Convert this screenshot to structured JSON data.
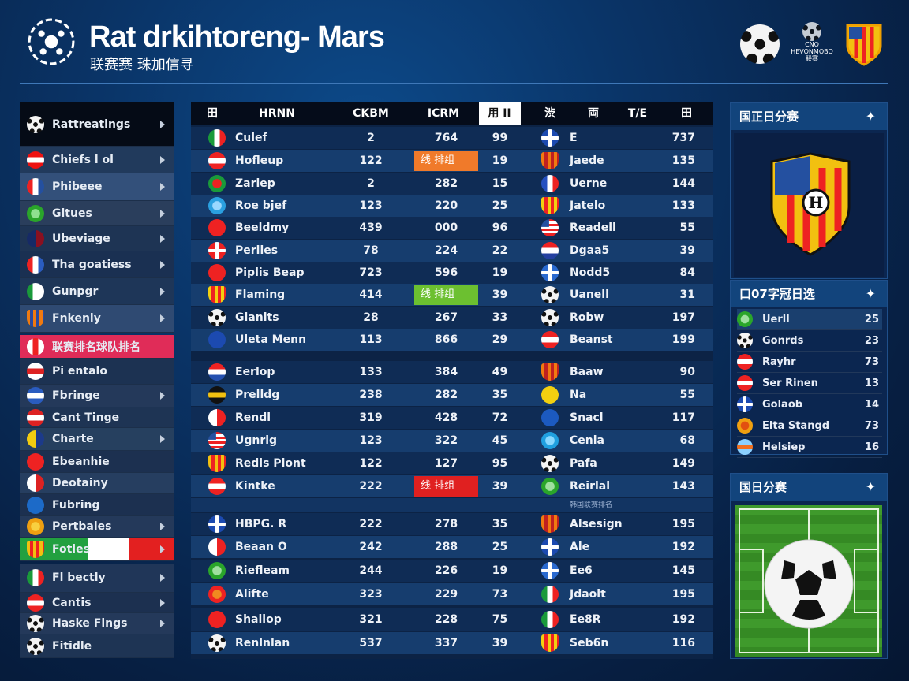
{
  "header": {
    "title": "Rat drkihtoreng- Mars",
    "subtitle": "联赛赛 珠加信寻",
    "right_logo_text": "CNO HEVONMOBO 联赛"
  },
  "sidebar": {
    "items": [
      {
        "label": "Rattreatings",
        "icon": "ball",
        "chev": true,
        "bg": "#050b16"
      },
      {
        "label": "Chiefs l ol",
        "icon": "h3:#e11:#fff:#e11",
        "chev": true,
        "bg": "#213a5c"
      },
      {
        "label": "Phibeee",
        "icon": "v3:#e22:#fff:#2450a0",
        "chev": true,
        "bg": "#33507a"
      },
      {
        "label": "Gitues",
        "icon": "ring:#2aa52a:#8fe08f",
        "chev": true,
        "bg": "#2a3e5c"
      },
      {
        "label": "Ubeviage",
        "icon": "v2:#162a66:#8a1020",
        "chev": true,
        "bg": "#1e3454"
      },
      {
        "label": "Tha goatiess",
        "icon": "v3:#e22:#fff:#2a5cc0",
        "chev": true,
        "bg": "#1a3052"
      },
      {
        "label": "Gunpgr",
        "icon": "v3:#1a9a3a:#fff:#fff",
        "chev": true,
        "bg": "#1e3658"
      },
      {
        "label": "Fnkenly",
        "icon": "shield:#f07a10:#2a4aa0",
        "chev": true,
        "bg": "#2f4a72"
      },
      {
        "label": "联赛排名球队排名",
        "icon": "v3:#fff:#e22:#fff",
        "chev": false,
        "bg": "#e02c58"
      },
      {
        "label": "Pi entalo",
        "icon": "h3:#fff:#d22:#fff",
        "chev": false,
        "bg": "#1c3252"
      },
      {
        "label": "Fbringe",
        "icon": "h3:#2a5cc0:#fff:#2a5cc0",
        "chev": true,
        "bg": "#24395a"
      },
      {
        "label": "Cant Tinge",
        "icon": "h3:#d22:#fff:#d22",
        "chev": false,
        "bg": "#1e3454"
      },
      {
        "label": "Charte",
        "icon": "v2:#f2cc10:#1c3a8a",
        "chev": true,
        "bg": "#26405f"
      },
      {
        "label": "Ebeanhie",
        "icon": "solid:#e22",
        "chev": false,
        "bg": "#1c3050"
      },
      {
        "label": "Deotainy",
        "icon": "v2:#fff:#d22",
        "chev": false,
        "bg": "#263e60"
      },
      {
        "label": "Fubring",
        "icon": "solid:#1c6ac8",
        "chev": false,
        "bg": "#1c3050"
      },
      {
        "label": "Pertbales",
        "icon": "ring:#f0a010:#f8d040",
        "chev": true,
        "bg": "#24395a"
      },
      {
        "label": "Fotles",
        "icon": "shield:#f2c010:#e22",
        "chev": true,
        "bg": "linear-gradient(90deg,#22a040 0 44%,#fff 44% 71%,#e32020 71%)"
      },
      {
        "label": "Fl bectly",
        "icon": "v3:#1a9a3a:#fff:#e22",
        "chev": true,
        "bg": "#203658"
      },
      {
        "label": "Cantis",
        "icon": "h3:#e22:#fff:#e22",
        "chev": true,
        "bg": "#1c3050"
      },
      {
        "label": "Haske Fings",
        "icon": "ball",
        "chev": true,
        "bg": "#24395a"
      },
      {
        "label": "Fitidle",
        "icon": "ball",
        "chev": false,
        "bg": "#1e3454"
      }
    ]
  },
  "table": {
    "headers": [
      "田",
      "HRNN",
      "CKBM",
      "ICRM",
      "用 II",
      "渋",
      "両",
      "T/E",
      "田"
    ],
    "rows": [
      {
        "i1": "v3:#1a9a3a:#fff:#e22",
        "n1": "Culef",
        "a": "2",
        "b": "764",
        "c": "99",
        "i2": "cross:#1c4ab0:#fff",
        "n2": "E",
        "d": "737"
      },
      {
        "i1": "h3:#e22:#fff:#e22",
        "n1": "Hofleup",
        "a": "122",
        "b": "线 排组",
        "hl": "#f07a2a",
        "c": "19",
        "i2": "shield:#f07a10:#c02020",
        "n2": "Jaede",
        "d": "135"
      },
      {
        "i1": "ring:#1a9a3a:#e22",
        "n1": "Zarlep",
        "a": "2",
        "b": "282",
        "c": "15",
        "i2": "v3:#2450c0:#fff:#e22",
        "n2": "Uerne",
        "d": "144"
      },
      {
        "i1": "ring:#2aa0e0:#9ad8ff",
        "n1": "Roe bjef",
        "a": "123",
        "b": "220",
        "c": "25",
        "i2": "shield:#f2d010:#e22",
        "n2": "Jatelo",
        "d": "133"
      },
      {
        "i1": "solid:#e22",
        "n1": "Beeldmy",
        "a": "439",
        "b": "000",
        "c": "96",
        "i2": "us",
        "n2": "Readell",
        "d": "55"
      },
      {
        "i1": "cross:#e22:#fff",
        "n1": "Perlies",
        "a": "78",
        "b": "224",
        "c": "22",
        "i2": "h3:#e22:#fff:#2440a0",
        "n2": "Dgaa5",
        "d": "39"
      },
      {
        "i1": "solid:#e22",
        "n1": "Piplis Beap",
        "a": "723",
        "b": "596",
        "c": "19",
        "i2": "cross:#2a6ad0:#fff",
        "n2": "Nodd5",
        "d": "84"
      },
      {
        "i1": "shield:#f2d010:#e22",
        "n1": "Flaming",
        "a": "414",
        "b": "线 排组",
        "hl": "#6cc030",
        "c": "39",
        "i2": "ball",
        "n2": "Uanell",
        "d": "31"
      },
      {
        "i1": "ball",
        "n1": "Glanits",
        "a": "28",
        "b": "267",
        "c": "33",
        "i2": "ball",
        "n2": "Robw",
        "d": "197"
      },
      {
        "i1": "solid:#1c4ab0",
        "n1": "Uleta Menn",
        "a": "113",
        "b": "866",
        "c": "29",
        "i2": "h3:#e22:#fff:#e22",
        "n2": "Beanst",
        "d": "199"
      },
      {
        "i1": "h3:#e22:#fff:#2450b0",
        "n1": "Eerlop",
        "a": "133",
        "b": "384",
        "c": "49",
        "i2": "shield:#f07a10:#c02020",
        "n2": "Baaw",
        "d": "90"
      },
      {
        "i1": "h3:#111:#f2c010:#111",
        "n1": "Prelldg",
        "a": "238",
        "b": "282",
        "c": "35",
        "i2": "solid:#f2d010",
        "n2": "Na",
        "d": "55"
      },
      {
        "i1": "v2:#fff:#e22",
        "n1": "Rendl",
        "a": "319",
        "b": "428",
        "c": "72",
        "i2": "solid:#1c5ac0",
        "n2": "Snacl",
        "d": "117"
      },
      {
        "i1": "us",
        "n1": "Ugnrlg",
        "a": "123",
        "b": "322",
        "c": "45",
        "i2": "ring:#20a0e0:#8ad8ff",
        "n2": "Cenla",
        "d": "68"
      },
      {
        "i1": "shield:#f2c010:#e22",
        "n1": "Redis Plont",
        "a": "122",
        "b": "127",
        "c": "95",
        "i2": "ball",
        "n2": "Pafa",
        "d": "149"
      },
      {
        "i1": "h3:#e22:#fff:#e22",
        "n1": "Kintke",
        "a": "222",
        "b": "线 排组",
        "hl": "#e02020",
        "c": "39",
        "i2": "ring:#2aa52a:#9fe09f",
        "n2": "Reirlal",
        "d": "143"
      },
      {
        "i1": "cross:#1c4ab0:#fff",
        "n1": "HBPG. R",
        "a": "222",
        "b": "278",
        "c": "35",
        "i2": "shield:#f07a10:#c02020",
        "n2": "Alsesign",
        "d": "195"
      },
      {
        "i1": "v2:#fff:#e22",
        "n1": "Beaan O",
        "a": "242",
        "b": "288",
        "c": "25",
        "i2": "cross:#1c4ab0:#fff",
        "n2": "Ale",
        "d": "192"
      },
      {
        "i1": "ring:#2aa52a:#9fe09f",
        "n1": "Riefleam",
        "a": "244",
        "b": "226",
        "c": "19",
        "i2": "cross:#2a6ad0:#fff",
        "n2": "Ee6",
        "d": "145"
      },
      {
        "i1": "ring:#e22:#f08a20",
        "n1": "Alifte",
        "a": "323",
        "b": "229",
        "c": "73",
        "i2": "v3:#1a9a3a:#fff:#e22",
        "n2": "Jdaolt",
        "d": "195"
      },
      {
        "i1": "solid:#e22",
        "n1": "Shallop",
        "a": "321",
        "b": "228",
        "c": "75",
        "i2": "v3:#1a9a3a:#fff:#e22",
        "n2": "Ee8R",
        "d": "192"
      },
      {
        "i1": "ball",
        "n1": "Renlnlan",
        "a": "537",
        "b": "337",
        "c": "39",
        "i2": "shield:#f2d010:#e22",
        "n2": "Seb6n",
        "d": "116"
      }
    ],
    "separator_label": "韩国联赛排名"
  },
  "right": {
    "panel1_title": "国正日分赛",
    "panel2_title": "口07字冠日选",
    "panel3_title": "国日分赛",
    "list": [
      {
        "icon": "ring:#2aa52a:#9fe09f",
        "name": "Uerll",
        "value": "25"
      },
      {
        "icon": "ball",
        "name": "Gonrds",
        "value": "23"
      },
      {
        "icon": "h3:#e22:#fff:#e22",
        "name": "Rayhr",
        "value": "73"
      },
      {
        "icon": "h3:#e22:#fff:#e22",
        "name": "Ser Rinen",
        "value": "13"
      },
      {
        "icon": "cross:#1c4ab0:#fff",
        "name": "Golaob",
        "value": "14"
      },
      {
        "icon": "ring:#f0a010:#e25010",
        "name": "Elta Stangd",
        "value": "73"
      },
      {
        "icon": "h3:#8ad0ff:#f07020:#8ad0ff",
        "name": "Helsiep",
        "value": "16"
      }
    ]
  }
}
